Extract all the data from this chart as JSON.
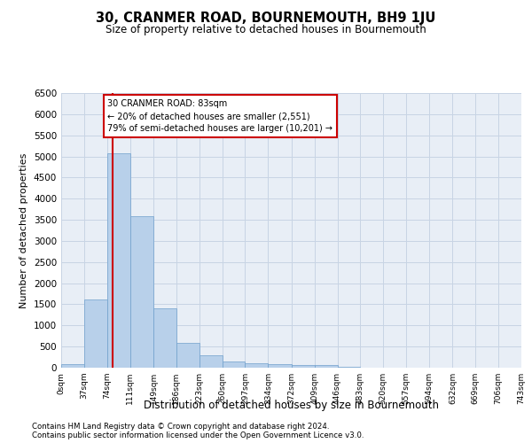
{
  "title": "30, CRANMER ROAD, BOURNEMOUTH, BH9 1JU",
  "subtitle": "Size of property relative to detached houses in Bournemouth",
  "xlabel": "Distribution of detached houses by size in Bournemouth",
  "ylabel": "Number of detached properties",
  "footnote1": "Contains HM Land Registry data © Crown copyright and database right 2024.",
  "footnote2": "Contains public sector information licensed under the Open Government Licence v3.0.",
  "annotation_title": "30 CRANMER ROAD: 83sqm",
  "annotation_line1": "← 20% of detached houses are smaller (2,551)",
  "annotation_line2": "79% of semi-detached houses are larger (10,201) →",
  "bar_color": "#b8d0ea",
  "bar_edge_color": "#6fa0cc",
  "red_line_color": "#cc0000",
  "annotation_box_color": "#cc0000",
  "grid_color": "#c8d4e4",
  "background_color": "#e8eef6",
  "bin_edges": [
    0,
    37,
    74,
    111,
    149,
    186,
    223,
    260,
    297,
    334,
    372,
    409,
    446,
    483,
    520,
    557,
    594,
    632,
    669,
    706,
    743
  ],
  "bar_heights": [
    75,
    1625,
    5080,
    3590,
    1410,
    590,
    290,
    145,
    110,
    80,
    55,
    55,
    20,
    10,
    10,
    5,
    5,
    5,
    5,
    5
  ],
  "red_line_x": 83,
  "ylim": [
    0,
    6500
  ],
  "yticks": [
    0,
    500,
    1000,
    1500,
    2000,
    2500,
    3000,
    3500,
    4000,
    4500,
    5000,
    5500,
    6000,
    6500
  ]
}
